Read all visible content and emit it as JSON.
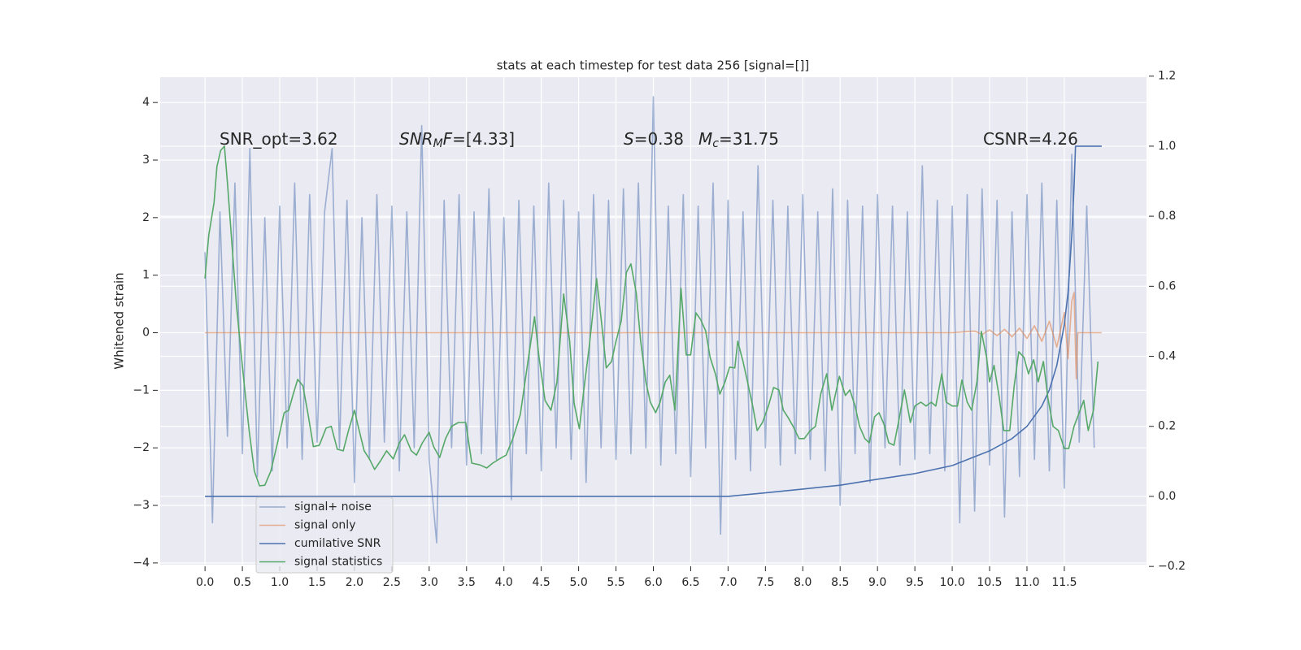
{
  "chart_data": {
    "type": "line",
    "title": "stats at each timestep for test data 256 [signal=[]]",
    "y_label": "Whitened strain",
    "xlim": [
      -0.6,
      12.6
    ],
    "xticks": [
      {
        "value": 0,
        "label": "0.0"
      },
      0.5,
      {
        "value": 1,
        "label": "1.0"
      },
      1.5,
      {
        "value": 2,
        "label": "2.0"
      },
      2.5,
      {
        "value": 3,
        "label": "3.0"
      },
      3.5,
      {
        "value": 4,
        "label": "4.0"
      },
      4.5,
      {
        "value": 5,
        "label": "5.0"
      },
      5.5,
      {
        "value": 6,
        "label": "6.0"
      },
      6.5,
      {
        "value": 7,
        "label": "7.0"
      },
      7.5,
      {
        "value": 8,
        "label": "8.0"
      },
      8.5,
      {
        "value": 9,
        "label": "9.0"
      },
      9.5,
      {
        "value": 10,
        "label": "10.0"
      },
      10.5,
      {
        "value": 11,
        "label": "11.0"
      },
      11.5
    ],
    "ylim": [
      -4.03,
      4.44
    ],
    "yticks": [
      {
        "value": -4,
        "label": "−4"
      },
      {
        "value": -3,
        "label": "−3"
      },
      {
        "value": -2,
        "label": "−2"
      },
      {
        "value": -1,
        "label": "−1"
      },
      0,
      1,
      2,
      3,
      4
    ],
    "y2lim": [
      -0.195,
      1.197
    ],
    "y2ticks": [
      {
        "value": -0.2,
        "label": "−0.2"
      },
      {
        "value": 0,
        "label": "0.0"
      },
      0.2,
      0.4,
      0.6,
      0.8,
      {
        "value": 1,
        "label": "1.0"
      },
      1.2
    ],
    "grid": true,
    "legend": "lower left",
    "annotations": [
      {
        "parts": [
          {
            "text": "SNR_opt=3.62",
            "style": "plain"
          }
        ]
      },
      {
        "parts": [
          {
            "text": "SNR",
            "style": "italic"
          },
          {
            "text": "M",
            "style": "sub"
          },
          {
            "text": "F",
            "style": "italic"
          },
          {
            "text": "=[4.33]",
            "style": "plain"
          }
        ]
      },
      {
        "parts": [
          {
            "text": "S",
            "style": "italic"
          },
          {
            "text": "=0.38",
            "style": "plain"
          }
        ]
      },
      {
        "parts": [
          {
            "text": "M",
            "style": "italic"
          },
          {
            "text": "c",
            "style": "sub"
          },
          {
            "text": "=31.75",
            "style": "plain"
          }
        ]
      },
      {
        "parts": [
          {
            "text": "CSNR=4.26",
            "style": "plain"
          }
        ]
      }
    ],
    "series": [
      {
        "name": "signal+ noise",
        "color": "#4c72b0",
        "opacity": 0.5,
        "x": [
          0.0,
          0.1,
          0.2,
          0.3,
          0.4,
          0.5,
          0.6,
          0.7,
          0.8,
          0.9,
          1.0,
          1.1,
          1.2,
          1.3,
          1.4,
          1.5,
          1.6,
          1.7,
          1.8,
          1.9,
          2.0,
          2.1,
          2.2,
          2.3,
          2.4,
          2.5,
          2.6,
          2.7,
          2.8,
          2.9,
          3.0,
          3.1,
          3.2,
          3.3,
          3.4,
          3.5,
          3.6,
          3.7,
          3.8,
          3.9,
          4.0,
          4.1,
          4.2,
          4.3,
          4.4,
          4.5,
          4.6,
          4.7,
          4.8,
          4.9,
          5.0,
          5.1,
          5.2,
          5.3,
          5.4,
          5.5,
          5.6,
          5.7,
          5.8,
          5.9,
          6.0,
          6.1,
          6.2,
          6.3,
          6.4,
          6.5,
          6.6,
          6.7,
          6.8,
          6.9,
          7.0,
          7.1,
          7.2,
          7.3,
          7.4,
          7.5,
          7.6,
          7.7,
          7.8,
          7.9,
          8.0,
          8.1,
          8.2,
          8.3,
          8.4,
          8.5,
          8.6,
          8.7,
          8.8,
          8.9,
          9.0,
          9.1,
          9.2,
          9.3,
          9.4,
          9.5,
          9.6,
          9.7,
          9.8,
          9.9,
          10.0,
          10.1,
          10.2,
          10.3,
          10.4,
          10.5,
          10.6,
          10.7,
          10.8,
          10.9,
          11.0,
          11.1,
          11.2,
          11.3,
          11.4,
          11.5,
          11.6,
          11.7,
          11.8,
          11.9
        ],
        "values": [
          1.4,
          -3.3,
          2.1,
          -1.8,
          2.6,
          -2.1,
          3.2,
          -2.5,
          2.0,
          -2.4,
          2.2,
          -2.0,
          2.6,
          -2.2,
          2.4,
          -1.9,
          2.1,
          3.2,
          -2.0,
          2.3,
          -2.6,
          2.0,
          -2.2,
          2.4,
          -1.9,
          2.2,
          -2.4,
          2.1,
          -2.0,
          3.6,
          -2.2,
          -3.65,
          2.3,
          -2.0,
          2.4,
          -2.3,
          2.1,
          -2.1,
          2.5,
          -2.2,
          2.0,
          -2.9,
          2.3,
          -2.1,
          2.2,
          -2.4,
          2.6,
          -2.0,
          2.3,
          -2.2,
          2.1,
          -2.6,
          2.4,
          -2.0,
          2.3,
          -2.2,
          2.5,
          -2.1,
          2.6,
          -2.0,
          4.1,
          -2.3,
          2.2,
          -2.1,
          2.4,
          -2.5,
          2.2,
          -2.0,
          2.6,
          -3.5,
          2.3,
          -2.2,
          2.1,
          -2.4,
          2.9,
          -2.0,
          2.3,
          -2.3,
          2.2,
          -2.1,
          2.4,
          -2.2,
          2.1,
          -2.4,
          2.5,
          -3.0,
          2.3,
          -2.1,
          2.2,
          -2.6,
          2.4,
          -2.0,
          2.2,
          -2.3,
          2.1,
          -2.2,
          2.9,
          -2.1,
          2.3,
          -2.4,
          2.2,
          -3.3,
          2.4,
          -3.1,
          2.5,
          -2.3,
          2.3,
          -3.2,
          2.1,
          -2.5,
          2.4,
          -2.2,
          2.6,
          -2.4,
          2.3,
          -2.7,
          3.1,
          -1.9,
          2.2,
          -2.0
        ]
      },
      {
        "name": "signal only",
        "color": "#dd8452",
        "opacity": 0.6,
        "x": [
          0.0,
          10.0,
          10.3,
          10.4,
          10.5,
          10.6,
          10.7,
          10.8,
          10.9,
          11.0,
          11.1,
          11.2,
          11.3,
          11.4,
          11.5,
          11.55,
          11.6,
          11.63,
          11.66,
          11.68,
          12.0
        ],
        "values": [
          0,
          0,
          0.03,
          -0.03,
          0.05,
          -0.05,
          0.06,
          -0.07,
          0.08,
          -0.1,
          0.12,
          -0.15,
          0.2,
          -0.25,
          0.35,
          -0.45,
          0.55,
          0.7,
          -0.8,
          0,
          0
        ]
      },
      {
        "name": "cumilative SNR",
        "color": "#4c72b0",
        "opacity": 1,
        "axis": "y2",
        "x": [
          0.0,
          7.0,
          7.5,
          8.0,
          8.5,
          9.0,
          9.5,
          10.0,
          10.5,
          10.8,
          11.0,
          11.2,
          11.3,
          11.4,
          11.5,
          11.55,
          11.6,
          11.63,
          11.65,
          12.0
        ],
        "values": [
          0,
          0,
          0.01,
          0.021,
          0.032,
          0.049,
          0.065,
          0.088,
          0.13,
          0.165,
          0.2,
          0.258,
          0.304,
          0.374,
          0.49,
          0.582,
          0.745,
          0.884,
          1.0,
          1.0
        ]
      },
      {
        "name": "signal statistics",
        "color": "#55a868",
        "opacity": 1,
        "axis": "y2",
        "x": [
          0.0,
          0.05,
          0.12,
          0.16,
          0.21,
          0.26,
          0.3,
          0.36,
          0.42,
          0.51,
          0.59,
          0.66,
          0.73,
          0.8,
          0.88,
          0.97,
          1.06,
          1.12,
          1.18,
          1.24,
          1.31,
          1.38,
          1.45,
          1.53,
          1.62,
          1.69,
          1.77,
          1.85,
          1.92,
          2.0,
          2.05,
          2.13,
          2.2,
          2.27,
          2.35,
          2.43,
          2.52,
          2.6,
          2.67,
          2.76,
          2.83,
          2.91,
          3.0,
          3.06,
          3.14,
          3.22,
          3.3,
          3.39,
          3.49,
          3.57,
          3.68,
          3.77,
          3.85,
          3.94,
          4.03,
          4.12,
          4.22,
          4.33,
          4.41,
          4.47,
          4.55,
          4.63,
          4.71,
          4.8,
          4.88,
          4.94,
          5.01,
          5.07,
          5.14,
          5.24,
          5.31,
          5.37,
          5.44,
          5.5,
          5.57,
          5.64,
          5.7,
          5.77,
          5.83,
          5.9,
          5.96,
          6.03,
          6.09,
          6.16,
          6.22,
          6.29,
          6.37,
          6.44,
          6.5,
          6.57,
          6.63,
          6.7,
          6.76,
          6.83,
          6.89,
          6.96,
          7.02,
          7.09,
          7.13,
          7.2,
          7.26,
          7.33,
          7.39,
          7.46,
          7.54,
          7.61,
          7.68,
          7.74,
          7.81,
          7.87,
          7.95,
          8.02,
          8.1,
          8.17,
          8.24,
          8.32,
          8.39,
          8.49,
          8.57,
          8.63,
          8.7,
          8.76,
          8.83,
          8.89,
          8.96,
          9.02,
          9.09,
          9.15,
          9.22,
          9.28,
          9.36,
          9.44,
          9.5,
          9.58,
          9.65,
          9.72,
          9.78,
          9.86,
          9.92,
          10.0,
          10.07,
          10.13,
          10.2,
          10.26,
          10.33,
          10.39,
          10.46,
          10.5,
          10.56,
          10.63,
          10.69,
          10.77,
          10.83,
          10.89,
          10.96,
          11.02,
          11.09,
          11.15,
          11.22,
          11.28,
          11.35,
          11.42,
          11.5,
          11.56,
          11.63,
          11.69,
          11.76,
          11.82,
          11.89,
          11.95
        ],
        "values": [
          0.622,
          0.745,
          0.838,
          0.942,
          0.988,
          1.0,
          0.896,
          0.722,
          0.548,
          0.35,
          0.188,
          0.072,
          0.03,
          0.032,
          0.072,
          0.153,
          0.239,
          0.246,
          0.292,
          0.334,
          0.316,
          0.234,
          0.142,
          0.146,
          0.195,
          0.2,
          0.135,
          0.13,
          0.188,
          0.246,
          0.2,
          0.13,
          0.107,
          0.077,
          0.102,
          0.13,
          0.107,
          0.153,
          0.176,
          0.13,
          0.118,
          0.153,
          0.183,
          0.142,
          0.111,
          0.165,
          0.2,
          0.211,
          0.211,
          0.095,
          0.09,
          0.081,
          0.095,
          0.107,
          0.118,
          0.165,
          0.234,
          0.397,
          0.513,
          0.397,
          0.274,
          0.246,
          0.327,
          0.578,
          0.443,
          0.265,
          0.193,
          0.304,
          0.425,
          0.622,
          0.49,
          0.367,
          0.385,
          0.443,
          0.501,
          0.64,
          0.664,
          0.582,
          0.443,
          0.327,
          0.269,
          0.239,
          0.269,
          0.327,
          0.346,
          0.246,
          0.594,
          0.404,
          0.404,
          0.524,
          0.506,
          0.473,
          0.397,
          0.35,
          0.292,
          0.327,
          0.369,
          0.367,
          0.443,
          0.385,
          0.327,
          0.258,
          0.188,
          0.211,
          0.258,
          0.311,
          0.304,
          0.246,
          0.223,
          0.2,
          0.165,
          0.165,
          0.188,
          0.2,
          0.292,
          0.35,
          0.246,
          0.343,
          0.288,
          0.304,
          0.258,
          0.2,
          0.165,
          0.153,
          0.227,
          0.239,
          0.204,
          0.153,
          0.146,
          0.211,
          0.304,
          0.211,
          0.258,
          0.269,
          0.258,
          0.269,
          0.258,
          0.35,
          0.269,
          0.258,
          0.258,
          0.332,
          0.269,
          0.246,
          0.327,
          0.471,
          0.397,
          0.327,
          0.374,
          0.281,
          0.188,
          0.188,
          0.316,
          0.413,
          0.397,
          0.35,
          0.39,
          0.327,
          0.385,
          0.281,
          0.2,
          0.188,
          0.137,
          0.137,
          0.2,
          0.234,
          0.274,
          0.188,
          0.246,
          0.385
        ]
      }
    ]
  }
}
